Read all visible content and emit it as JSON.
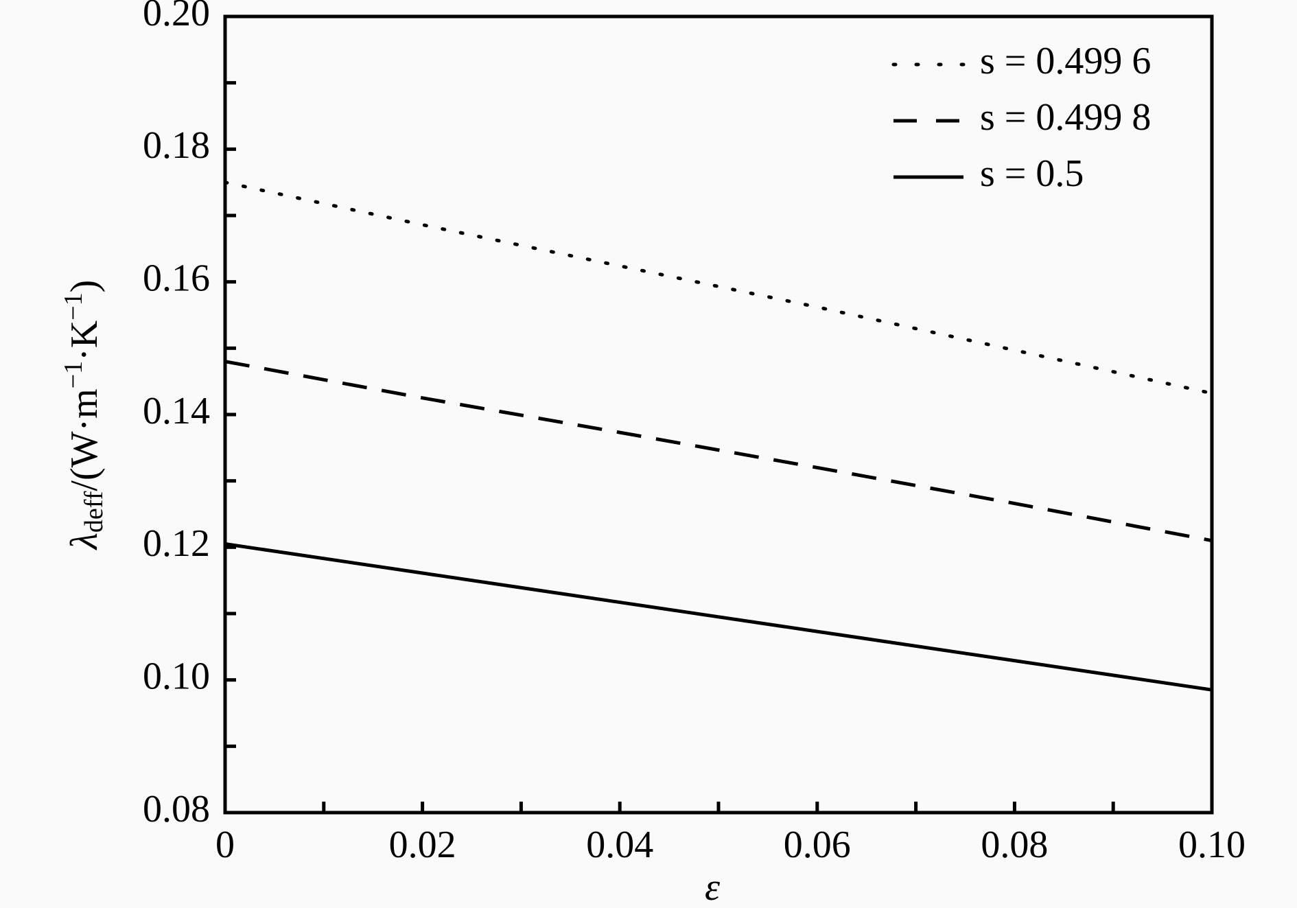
{
  "chart_data": {
    "type": "line",
    "xlabel": "ε",
    "ylabel_parts": [
      "λ",
      "deff",
      "/(W·m",
      "−1",
      "·K",
      "−1",
      ")"
    ],
    "x": [
      0,
      0.02,
      0.04,
      0.06,
      0.08,
      0.1
    ],
    "series": [
      {
        "name": "s = 0.499 6",
        "color": "#000000",
        "style": "dotted",
        "values": [
          0.175,
          0.1686,
          0.1624,
          0.1562,
          0.1497,
          0.1432
        ]
      },
      {
        "name": "s = 0.499 8",
        "color": "#000000",
        "style": "dashed",
        "values": [
          0.148,
          0.1425,
          0.1373,
          0.132,
          0.1266,
          0.121
        ]
      },
      {
        "name": "s = 0.5",
        "color": "#000000",
        "style": "solid",
        "values": [
          0.1205,
          0.1161,
          0.1117,
          0.1073,
          0.1029,
          0.0985
        ]
      }
    ],
    "xlim": [
      0,
      0.1
    ],
    "ylim": [
      0.08,
      0.2
    ],
    "xticks": [
      0,
      0.02,
      0.04,
      0.06,
      0.08,
      {
        "value": 0.1,
        "label": "0.10"
      }
    ],
    "yticks": [
      0.08,
      {
        "value": 0.1,
        "label": "0.10"
      },
      0.12,
      0.14,
      0.16,
      0.18,
      {
        "value": 0.2,
        "label": "0.20"
      }
    ],
    "xminorticks": [
      0.01,
      0.03,
      0.05,
      0.07,
      0.09
    ],
    "yminorticks": [
      0.09,
      0.11,
      0.13,
      0.15,
      0.17,
      0.19
    ],
    "legend": "upper right",
    "grid": false
  }
}
